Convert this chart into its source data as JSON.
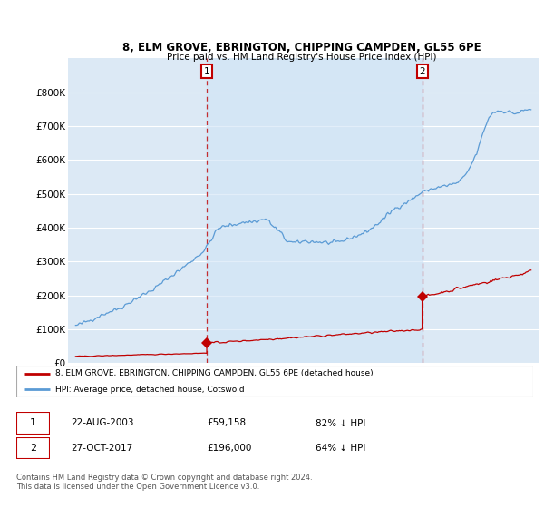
{
  "title": "8, ELM GROVE, EBRINGTON, CHIPPING CAMPDEN, GL55 6PE",
  "subtitle": "Price paid vs. HM Land Registry's House Price Index (HPI)",
  "ylim": [
    0,
    900000
  ],
  "yticks": [
    0,
    100000,
    200000,
    300000,
    400000,
    500000,
    600000,
    700000,
    800000
  ],
  "ytick_labels": [
    "£0",
    "£100K",
    "£200K",
    "£300K",
    "£400K",
    "£500K",
    "£600K",
    "£700K",
    "£800K"
  ],
  "xlim_start": 1994.5,
  "xlim_end": 2025.5,
  "sale1_date": 2003.64,
  "sale1_price": 59158,
  "sale2_date": 2017.83,
  "sale2_price": 196000,
  "sale1_text_date": "22-AUG-2003",
  "sale1_text_price": "£59,158",
  "sale1_text_pct": "82% ↓ HPI",
  "sale2_text_date": "27-OCT-2017",
  "sale2_text_price": "£196,000",
  "sale2_text_pct": "64% ↓ HPI",
  "hpi_color": "#5b9bd5",
  "property_color": "#c00000",
  "vline_color": "#c00000",
  "fill_color": "#d0e4f5",
  "plot_bg_color": "#dce9f5",
  "grid_color": "#ffffff",
  "legend_label_property": "8, ELM GROVE, EBRINGTON, CHIPPING CAMPDEN, GL55 6PE (detached house)",
  "legend_label_hpi": "HPI: Average price, detached house, Cotswold",
  "footer_text": "Contains HM Land Registry data © Crown copyright and database right 2024.\nThis data is licensed under the Open Government Licence v3.0."
}
